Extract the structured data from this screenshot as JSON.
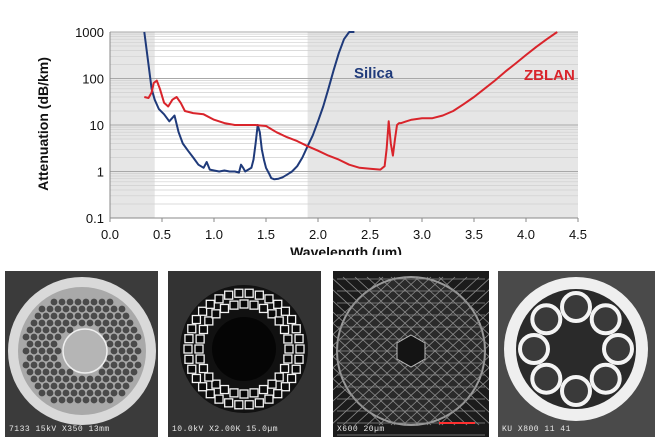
{
  "chart_data": {
    "type": "line",
    "xlabel": "Wavelength (µm)",
    "ylabel": "Attenuation (dB/km)",
    "yscale": "log",
    "xlim": [
      0,
      4.5
    ],
    "ylim": [
      0.1,
      1000
    ],
    "x_ticks": [
      "0.0",
      "0.5",
      "1.0",
      "1.5",
      "2.0",
      "2.5",
      "3.0",
      "3.5",
      "4.0",
      "4.5"
    ],
    "y_ticks": [
      "0.1",
      "1",
      "10",
      "100",
      "1000"
    ],
    "shaded_regions": [
      [
        0,
        0.43
      ],
      [
        1.9,
        4.5
      ]
    ],
    "series": [
      {
        "name": "Silica",
        "color": "#1f3a7a",
        "x": [
          0.33,
          0.37,
          0.4,
          0.43,
          0.47,
          0.52,
          0.57,
          0.62,
          0.66,
          0.7,
          0.75,
          0.8,
          0.85,
          0.9,
          0.93,
          0.96,
          1.0,
          1.05,
          1.1,
          1.15,
          1.2,
          1.24,
          1.26,
          1.28,
          1.3,
          1.33,
          1.36,
          1.38,
          1.4,
          1.42,
          1.44,
          1.46,
          1.48,
          1.5,
          1.53,
          1.55,
          1.58,
          1.62,
          1.66,
          1.7,
          1.75,
          1.8,
          1.85,
          1.9,
          1.95,
          2.0,
          2.05,
          2.1,
          2.15,
          2.2,
          2.25,
          2.3,
          2.35
        ],
        "y": [
          1000,
          200,
          60,
          35,
          22,
          17,
          12,
          16,
          7,
          4,
          2.8,
          2.0,
          1.4,
          1.2,
          1.6,
          1.1,
          1.05,
          1.0,
          1.05,
          1.0,
          1.0,
          0.95,
          1.4,
          1.2,
          1.0,
          1.1,
          1.2,
          1.8,
          4,
          10,
          7,
          3,
          1.8,
          1.2,
          0.9,
          0.72,
          0.68,
          0.7,
          0.75,
          0.85,
          1.0,
          1.3,
          2,
          3.5,
          6,
          12,
          25,
          60,
          150,
          350,
          700,
          1000,
          1000
        ]
      },
      {
        "name": "ZBLAN",
        "color": "#d9242b",
        "x": [
          0.33,
          0.37,
          0.4,
          0.42,
          0.45,
          0.48,
          0.52,
          0.56,
          0.6,
          0.64,
          0.68,
          0.72,
          0.8,
          0.9,
          1.0,
          1.1,
          1.2,
          1.3,
          1.4,
          1.5,
          1.6,
          1.7,
          1.8,
          1.9,
          2.0,
          2.1,
          2.2,
          2.3,
          2.4,
          2.5,
          2.6,
          2.64,
          2.66,
          2.68,
          2.7,
          2.72,
          2.74,
          2.76,
          2.78,
          2.8,
          2.85,
          2.9,
          3.0,
          3.1,
          3.2,
          3.3,
          3.4,
          3.5,
          3.6,
          3.7,
          3.8,
          3.9,
          4.0,
          4.1,
          4.2,
          4.3
        ],
        "y": [
          40,
          38,
          50,
          80,
          90,
          60,
          30,
          25,
          35,
          40,
          30,
          20,
          18,
          17,
          13,
          11,
          10,
          10,
          10,
          9.5,
          7,
          5.5,
          4.5,
          3.5,
          2.8,
          2.2,
          1.8,
          1.4,
          1.2,
          1.15,
          1.1,
          1.3,
          3,
          12,
          4,
          2.2,
          5,
          10,
          11,
          11,
          12,
          13,
          14,
          14,
          16,
          20,
          28,
          40,
          60,
          90,
          140,
          210,
          320,
          480,
          700,
          1000
        ]
      }
    ]
  },
  "images": [
    {
      "caption": "7133   15kV    X350   13mm"
    },
    {
      "caption": "10.0kV  X2.00K  15.0µm"
    },
    {
      "caption": "X600   20µm"
    },
    {
      "caption": "KU   X800         11 41"
    }
  ]
}
